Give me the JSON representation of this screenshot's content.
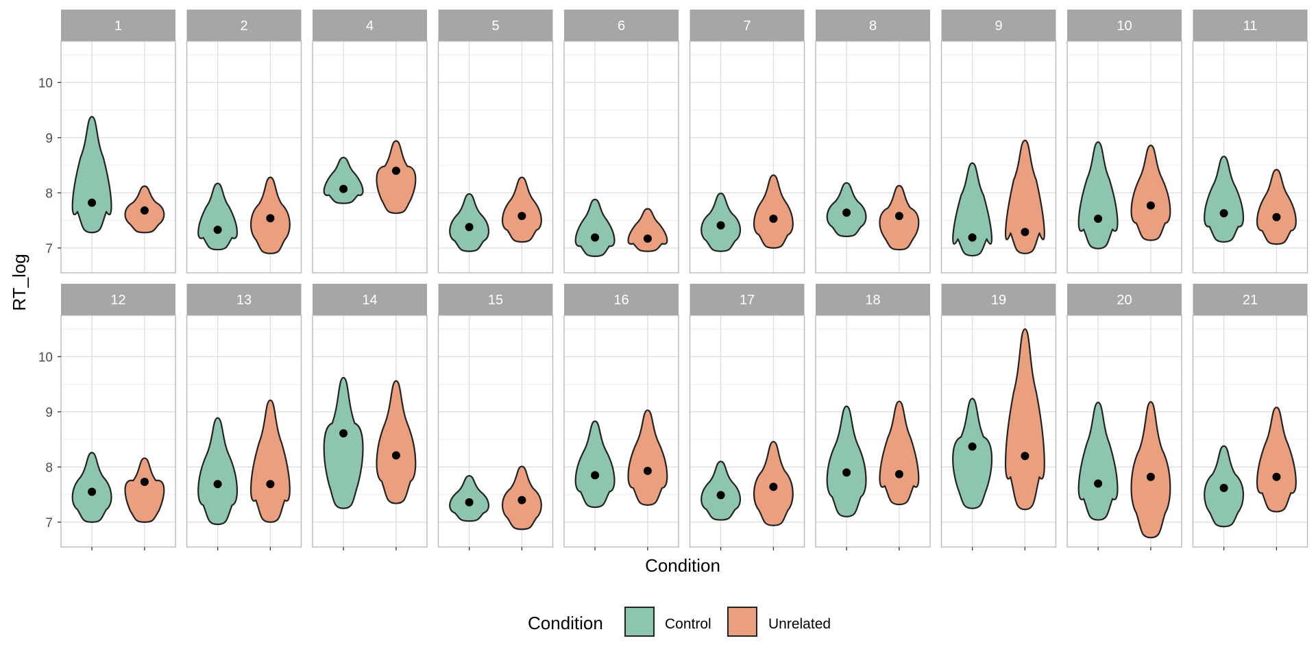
{
  "chart_data": {
    "type": "violin",
    "facet_by": "participant",
    "ylabel": "RT_log",
    "xlabel": "Condition",
    "ylim": [
      6.55,
      10.75
    ],
    "yticks": [
      7,
      8,
      9,
      10
    ],
    "grid": true,
    "legend": {
      "title": "Condition",
      "position": "bottom",
      "entries": [
        {
          "label": "Control",
          "color": "#8ec5ae"
        },
        {
          "label": "Unrelated",
          "color": "#eaa07f"
        }
      ]
    },
    "colors": {
      "Control": "#8ec5ae",
      "Unrelated": "#eaa07f",
      "outline": "#222222",
      "strip": "#a6a6a6"
    },
    "categories": [
      "Control",
      "Unrelated"
    ],
    "panels": [
      {
        "label": "1",
        "Control": {
          "min": 7.28,
          "max": 9.38,
          "median": 7.82
        },
        "Unrelated": {
          "min": 7.28,
          "max": 8.12,
          "median": 7.68
        }
      },
      {
        "label": "2",
        "Control": {
          "min": 6.97,
          "max": 8.17,
          "median": 7.33
        },
        "Unrelated": {
          "min": 6.9,
          "max": 8.28,
          "median": 7.54
        }
      },
      {
        "label": "4",
        "Control": {
          "min": 7.81,
          "max": 8.64,
          "median": 8.07
        },
        "Unrelated": {
          "min": 7.63,
          "max": 8.94,
          "median": 8.4
        }
      },
      {
        "label": "5",
        "Control": {
          "min": 6.94,
          "max": 7.98,
          "median": 7.38
        },
        "Unrelated": {
          "min": 7.11,
          "max": 8.28,
          "median": 7.58
        }
      },
      {
        "label": "6",
        "Control": {
          "min": 6.85,
          "max": 7.88,
          "median": 7.19
        },
        "Unrelated": {
          "min": 6.94,
          "max": 7.71,
          "median": 7.17
        }
      },
      {
        "label": "7",
        "Control": {
          "min": 6.94,
          "max": 7.99,
          "median": 7.41
        },
        "Unrelated": {
          "min": 7.0,
          "max": 8.32,
          "median": 7.53
        }
      },
      {
        "label": "8",
        "Control": {
          "min": 7.21,
          "max": 8.18,
          "median": 7.64
        },
        "Unrelated": {
          "min": 6.97,
          "max": 8.13,
          "median": 7.58
        }
      },
      {
        "label": "9",
        "Control": {
          "min": 6.86,
          "max": 8.54,
          "median": 7.19
        },
        "Unrelated": {
          "min": 6.9,
          "max": 8.95,
          "median": 7.29
        }
      },
      {
        "label": "10",
        "Control": {
          "min": 6.99,
          "max": 8.92,
          "median": 7.53
        },
        "Unrelated": {
          "min": 7.14,
          "max": 8.86,
          "median": 7.77
        }
      },
      {
        "label": "11",
        "Control": {
          "min": 7.11,
          "max": 8.66,
          "median": 7.63
        },
        "Unrelated": {
          "min": 7.07,
          "max": 8.42,
          "median": 7.56
        }
      },
      {
        "label": "12",
        "Control": {
          "min": 7.0,
          "max": 8.26,
          "median": 7.55
        },
        "Unrelated": {
          "min": 7.0,
          "max": 8.16,
          "median": 7.73
        }
      },
      {
        "label": "13",
        "Control": {
          "min": 6.96,
          "max": 8.89,
          "median": 7.69
        },
        "Unrelated": {
          "min": 7.0,
          "max": 9.21,
          "median": 7.69
        }
      },
      {
        "label": "14",
        "Control": {
          "min": 7.25,
          "max": 9.62,
          "median": 8.61
        },
        "Unrelated": {
          "min": 7.34,
          "max": 9.56,
          "median": 8.21
        }
      },
      {
        "label": "15",
        "Control": {
          "min": 7.02,
          "max": 7.84,
          "median": 7.36
        },
        "Unrelated": {
          "min": 6.87,
          "max": 8.01,
          "median": 7.4
        }
      },
      {
        "label": "16",
        "Control": {
          "min": 7.27,
          "max": 8.83,
          "median": 7.85
        },
        "Unrelated": {
          "min": 7.31,
          "max": 9.03,
          "median": 7.93
        }
      },
      {
        "label": "17",
        "Control": {
          "min": 7.04,
          "max": 8.1,
          "median": 7.49
        },
        "Unrelated": {
          "min": 6.94,
          "max": 8.46,
          "median": 7.64
        }
      },
      {
        "label": "18",
        "Control": {
          "min": 7.1,
          "max": 9.1,
          "median": 7.9
        },
        "Unrelated": {
          "min": 7.32,
          "max": 9.19,
          "median": 7.87
        }
      },
      {
        "label": "19",
        "Control": {
          "min": 7.25,
          "max": 9.24,
          "median": 8.37
        },
        "Unrelated": {
          "min": 7.23,
          "max": 10.5,
          "median": 8.2
        }
      },
      {
        "label": "20",
        "Control": {
          "min": 7.04,
          "max": 9.17,
          "median": 7.7
        },
        "Unrelated": {
          "min": 6.72,
          "max": 9.18,
          "median": 7.82
        }
      },
      {
        "label": "21",
        "Control": {
          "min": 6.92,
          "max": 8.38,
          "median": 7.62
        },
        "Unrelated": {
          "min": 7.19,
          "max": 9.08,
          "median": 7.82
        }
      }
    ]
  }
}
